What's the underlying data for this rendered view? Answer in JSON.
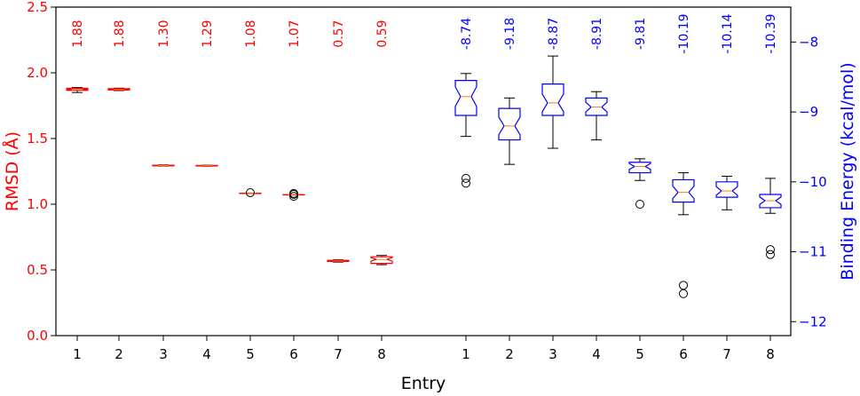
{
  "chart_data": {
    "type": "box",
    "xlabel": "Entry",
    "left_axis": {
      "label": "RMSD (Å)",
      "color": "#ff0000",
      "ylim": [
        0.0,
        2.5
      ],
      "ticks": [
        "0.0",
        "0.5",
        "1.0",
        "1.5",
        "2.0",
        "2.5"
      ]
    },
    "right_axis": {
      "label": "Binding Energy (kcal/mol)",
      "color": "#0000ff",
      "ylim": [
        -12.2,
        -7.5
      ],
      "ticks": [
        "−8",
        "−9",
        "−10",
        "−11",
        "−12"
      ]
    },
    "groups": [
      {
        "name": "rmsd",
        "axis": "left",
        "box_color": "#ff0000",
        "label_color": "#ff0000",
        "categories": [
          "1",
          "2",
          "3",
          "4",
          "5",
          "6",
          "7",
          "8"
        ],
        "mean_labels": [
          "1.88",
          "1.88",
          "1.30",
          "1.29",
          "1.08",
          "1.07",
          "0.57",
          "0.59"
        ],
        "boxes": [
          {
            "whislo": 1.85,
            "q1": 1.866,
            "med": 1.873,
            "q3": 1.882,
            "whishi": 1.888,
            "fliers": []
          },
          {
            "whislo": 1.865,
            "q1": 1.869,
            "med": 1.873,
            "q3": 1.879,
            "whishi": 1.883,
            "fliers": []
          },
          {
            "whislo": 1.29,
            "q1": 1.292,
            "med": 1.294,
            "q3": 1.297,
            "whishi": 1.299,
            "fliers": []
          },
          {
            "whislo": 1.289,
            "q1": 1.291,
            "med": 1.293,
            "q3": 1.295,
            "whishi": 1.297,
            "fliers": []
          },
          {
            "whislo": 1.081,
            "q1": 1.082,
            "med": 1.083,
            "q3": 1.084,
            "whishi": 1.085,
            "fliers": [
              1.088
            ]
          },
          {
            "whislo": 1.07,
            "q1": 1.071,
            "med": 1.072,
            "q3": 1.073,
            "whishi": 1.074,
            "fliers": [
              1.06,
              1.075,
              1.082
            ]
          },
          {
            "whislo": 0.56,
            "q1": 0.565,
            "med": 0.569,
            "q3": 0.573,
            "whishi": 0.577,
            "fliers": []
          },
          {
            "whislo": 0.54,
            "q1": 0.55,
            "med": 0.58,
            "q3": 0.6,
            "whishi": 0.61,
            "fliers": []
          }
        ]
      },
      {
        "name": "binding-energy",
        "axis": "right",
        "box_color": "#0000ff",
        "label_color": "#0000ff",
        "categories": [
          "1",
          "2",
          "3",
          "4",
          "5",
          "6",
          "7",
          "8"
        ],
        "mean_labels": [
          "-8.74",
          "-9.18",
          "-8.87",
          "-8.91",
          "-9.81",
          "-10.19",
          "-10.14",
          "-10.39"
        ],
        "boxes": [
          {
            "whislo": -9.35,
            "q1": -9.05,
            "med": -8.78,
            "q3": -8.55,
            "whishi": -8.45,
            "fliers": [
              -9.95,
              -10.02
            ]
          },
          {
            "whislo": -9.75,
            "q1": -9.4,
            "med": -9.2,
            "q3": -8.95,
            "whishi": -8.8,
            "fliers": []
          },
          {
            "whislo": -9.52,
            "q1": -9.05,
            "med": -8.87,
            "q3": -8.6,
            "whishi": -8.2,
            "fliers": []
          },
          {
            "whislo": -9.4,
            "q1": -9.05,
            "med": -8.93,
            "q3": -8.8,
            "whishi": -8.71,
            "fliers": []
          },
          {
            "whislo": -9.98,
            "q1": -9.87,
            "med": -9.78,
            "q3": -9.72,
            "whishi": -9.67,
            "fliers": [
              -10.32
            ]
          },
          {
            "whislo": -10.47,
            "q1": -10.29,
            "med": -10.15,
            "q3": -9.97,
            "whishi": -9.87,
            "fliers": [
              -11.48,
              -11.6
            ]
          },
          {
            "whislo": -10.4,
            "q1": -10.22,
            "med": -10.13,
            "q3": -10.0,
            "whishi": -9.92,
            "fliers": []
          },
          {
            "whislo": -10.45,
            "q1": -10.37,
            "med": -10.27,
            "q3": -10.18,
            "whishi": -9.95,
            "fliers": [
              -10.97,
              -11.04
            ]
          }
        ]
      }
    ]
  }
}
